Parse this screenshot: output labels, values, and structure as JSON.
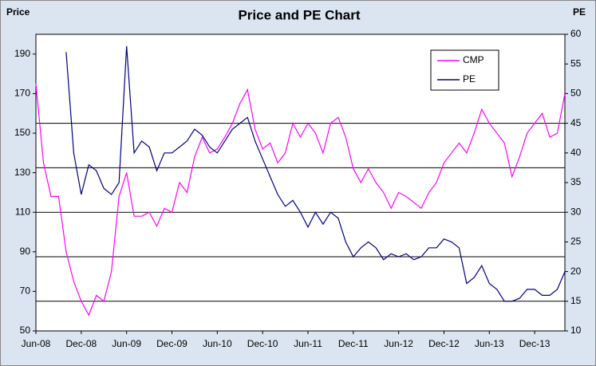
{
  "chart_data": {
    "type": "line",
    "title": "Price and PE Chart",
    "y_label": "Price",
    "y2_label": "PE",
    "categories": [
      "Jun-08",
      null,
      null,
      null,
      null,
      null,
      "Dec-08",
      null,
      null,
      null,
      null,
      null,
      "Jun-09",
      null,
      null,
      null,
      null,
      null,
      "Dec-09",
      null,
      null,
      null,
      null,
      null,
      "Jun-10",
      null,
      null,
      null,
      null,
      null,
      "Dec-10",
      null,
      null,
      null,
      null,
      null,
      "Jun-11",
      null,
      null,
      null,
      null,
      null,
      "Dec-11",
      null,
      null,
      null,
      null,
      null,
      "Jun-12",
      null,
      null,
      null,
      null,
      null,
      "Dec-12",
      null,
      null,
      null,
      null,
      null,
      "Jun-13",
      null,
      null,
      null,
      null,
      null,
      "Dec-13",
      null,
      null,
      null,
      null
    ],
    "series": [
      {
        "name": "CMP",
        "color": "#ff00ff",
        "axis": "y",
        "values": [
          175,
          135,
          118,
          118,
          90,
          75,
          65,
          58,
          68,
          65,
          80,
          118,
          130,
          108,
          108,
          110,
          103,
          112,
          110,
          125,
          120,
          138,
          148,
          140,
          142,
          148,
          155,
          165,
          172,
          152,
          142,
          145,
          135,
          140,
          155,
          148,
          155,
          150,
          140,
          155,
          158,
          148,
          132,
          125,
          132,
          125,
          120,
          112,
          120,
          118,
          115,
          112,
          120,
          125,
          135,
          140,
          145,
          140,
          150,
          162,
          155,
          150,
          145,
          128,
          138,
          150,
          155,
          160,
          148,
          150,
          170
        ]
      },
      {
        "name": "PE",
        "color": "#000080",
        "axis": "y2",
        "values": [
          null,
          null,
          null,
          null,
          57,
          40,
          33,
          38,
          37,
          34,
          33,
          35,
          58,
          40,
          42,
          41,
          37,
          40,
          40,
          41,
          42,
          44,
          43,
          41,
          40,
          42,
          44,
          45,
          46,
          42,
          39,
          36,
          33,
          31,
          32,
          30,
          27.5,
          30,
          28,
          30,
          29,
          25,
          22.5,
          24,
          25,
          24,
          22,
          23,
          22.5,
          23,
          22,
          22.5,
          24,
          24,
          25.5,
          25,
          24,
          18,
          19,
          21,
          18,
          17,
          15,
          15,
          15.5,
          17,
          17,
          16,
          16,
          17,
          20
        ]
      }
    ],
    "ylim": [
      50,
      200
    ],
    "yticks": [
      50,
      70,
      90,
      110,
      130,
      150,
      170,
      190
    ],
    "y2lim": [
      10,
      60
    ],
    "y2ticks": [
      10,
      15,
      20,
      25,
      30,
      35,
      40,
      45,
      50,
      55,
      60
    ],
    "grid_y2": [
      15,
      22.5,
      30,
      37.5,
      45
    ],
    "legend": "top-right"
  }
}
